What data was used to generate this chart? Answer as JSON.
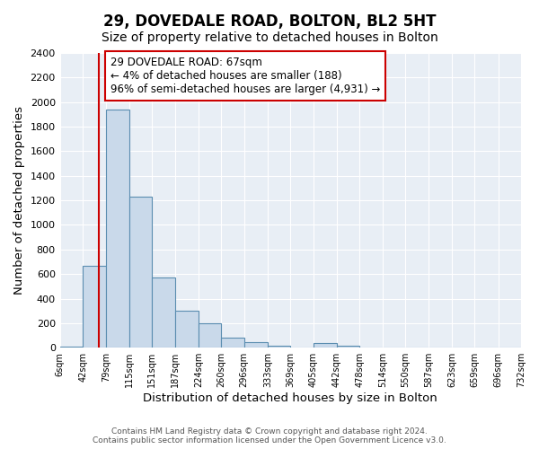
{
  "title": "29, DOVEDALE ROAD, BOLTON, BL2 5HT",
  "subtitle": "Size of property relative to detached houses in Bolton",
  "xlabel": "Distribution of detached houses by size in Bolton",
  "ylabel": "Number of detached properties",
  "bin_edges": [
    6,
    42,
    79,
    115,
    151,
    187,
    224,
    260,
    296,
    333,
    369,
    405,
    442,
    478,
    514,
    550,
    587,
    623,
    659,
    696,
    732
  ],
  "bin_counts": [
    10,
    670,
    1940,
    1230,
    575,
    300,
    200,
    80,
    45,
    15,
    5,
    35,
    15,
    5,
    5,
    5,
    5,
    5,
    5,
    5
  ],
  "bar_facecolor": "#c9d9ea",
  "bar_edgecolor": "#5a8db0",
  "property_size": 67,
  "vline_color": "#cc0000",
  "annotation_text": "29 DOVEDALE ROAD: 67sqm\n← 4% of detached houses are smaller (188)\n96% of semi-detached houses are larger (4,931) →",
  "annotation_box_edgecolor": "#cc0000",
  "annotation_fontsize": 8.5,
  "ylim": [
    0,
    2400
  ],
  "yticks": [
    0,
    200,
    400,
    600,
    800,
    1000,
    1200,
    1400,
    1600,
    1800,
    2000,
    2200,
    2400
  ],
  "tick_labels": [
    "6sqm",
    "42sqm",
    "79sqm",
    "115sqm",
    "151sqm",
    "187sqm",
    "224sqm",
    "260sqm",
    "296sqm",
    "333sqm",
    "369sqm",
    "405sqm",
    "442sqm",
    "478sqm",
    "514sqm",
    "550sqm",
    "587sqm",
    "623sqm",
    "659sqm",
    "696sqm",
    "732sqm"
  ],
  "footer_text": "Contains HM Land Registry data © Crown copyright and database right 2024.\nContains public sector information licensed under the Open Government Licence v3.0.",
  "fig_bg_color": "#ffffff",
  "plot_bg_color": "#e8eef5",
  "grid_color": "#ffffff",
  "title_fontsize": 12,
  "subtitle_fontsize": 10,
  "axis_label_fontsize": 9.5,
  "footer_fontsize": 6.5
}
